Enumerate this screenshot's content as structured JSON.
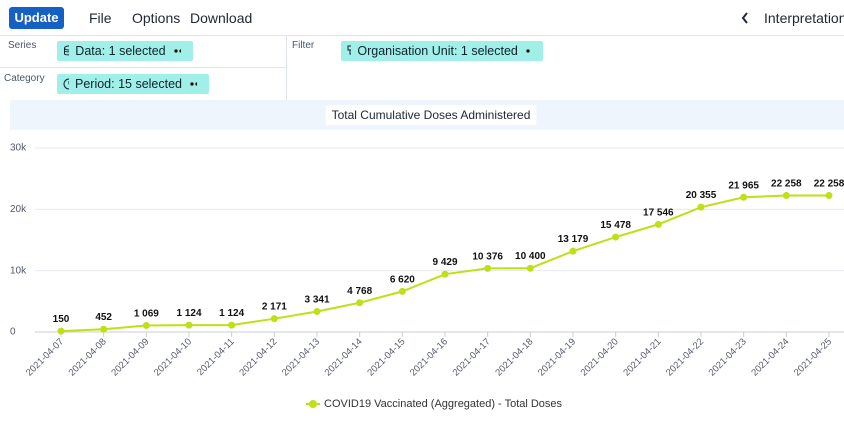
{
  "toolbar": {
    "update": "Update",
    "menu": [
      "File",
      "Options",
      "Download"
    ],
    "interpretations": "Interpretations"
  },
  "layout": {
    "series_label": "Series",
    "series_chip": "Data: 1 selected",
    "category_label": "Category",
    "category_chip": "Period: 15 selected",
    "filter_label": "Filter",
    "filter_chip": "Organisation Unit: 1 selected"
  },
  "chart_data": {
    "type": "line",
    "title": "Total Cumulative Doses Administered",
    "categories": [
      "2021-04-07",
      "2021-04-08",
      "2021-04-09",
      "2021-04-10",
      "2021-04-11",
      "2021-04-12",
      "2021-04-13",
      "2021-04-14",
      "2021-04-15",
      "2021-04-16",
      "2021-04-17",
      "2021-04-18",
      "2021-04-19",
      "2021-04-20",
      "2021-04-21",
      "2021-04-22",
      "2021-04-23",
      "2021-04-24",
      "2021-04-25"
    ],
    "series": [
      {
        "name": "COVID19 Vaccinated (Aggregated) - Total Doses",
        "color": "#c0df16",
        "values": [
          150,
          452,
          1069,
          1124,
          1124,
          2171,
          3341,
          4768,
          6620,
          9429,
          10376,
          10400,
          13179,
          15478,
          17546,
          20355,
          21965,
          22258,
          22258
        ],
        "value_labels": [
          "150",
          "452",
          "1 069",
          "1 124",
          "1 124",
          "2 171",
          "3 341",
          "4 768",
          "6 620",
          "9 429",
          "10 376",
          "10 400",
          "13 179",
          "15 478",
          "17 546",
          "20 355",
          "21 965",
          "22 258",
          "22 258"
        ]
      }
    ],
    "ylim": [
      0,
      30000
    ],
    "yticks": [
      0,
      {
        "value": 10000,
        "label": "10k"
      },
      {
        "value": 20000,
        "label": "20k"
      },
      {
        "value": 30000,
        "label": "30k"
      }
    ],
    "grid": true,
    "legend": "bottom"
  }
}
